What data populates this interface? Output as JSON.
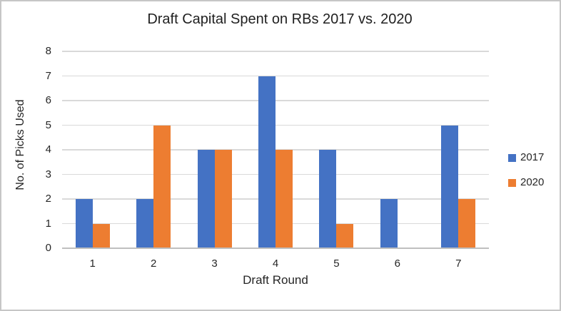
{
  "chart_data": {
    "type": "bar",
    "title": "Draft Capital Spent on RBs 2017 vs. 2020",
    "xlabel": "Draft Round",
    "ylabel": "No. of Picks Used",
    "categories": [
      "1",
      "2",
      "3",
      "4",
      "5",
      "6",
      "7"
    ],
    "series": [
      {
        "name": "2017",
        "color": "#4472C4",
        "values": [
          2,
          2,
          4,
          7,
          4,
          2,
          5
        ]
      },
      {
        "name": "2020",
        "color": "#ED7D31",
        "values": [
          1,
          5,
          4,
          4,
          1,
          0,
          2
        ]
      }
    ],
    "ylim": [
      0,
      8
    ],
    "ytick_step": 1,
    "grid": true,
    "legend_position": "right",
    "colors": {
      "gridline": "#D9D9D9",
      "axis_line": "#BFBFBF",
      "text": "#262626",
      "border": "#C6C6C6",
      "background": "#FFFFFF"
    }
  }
}
